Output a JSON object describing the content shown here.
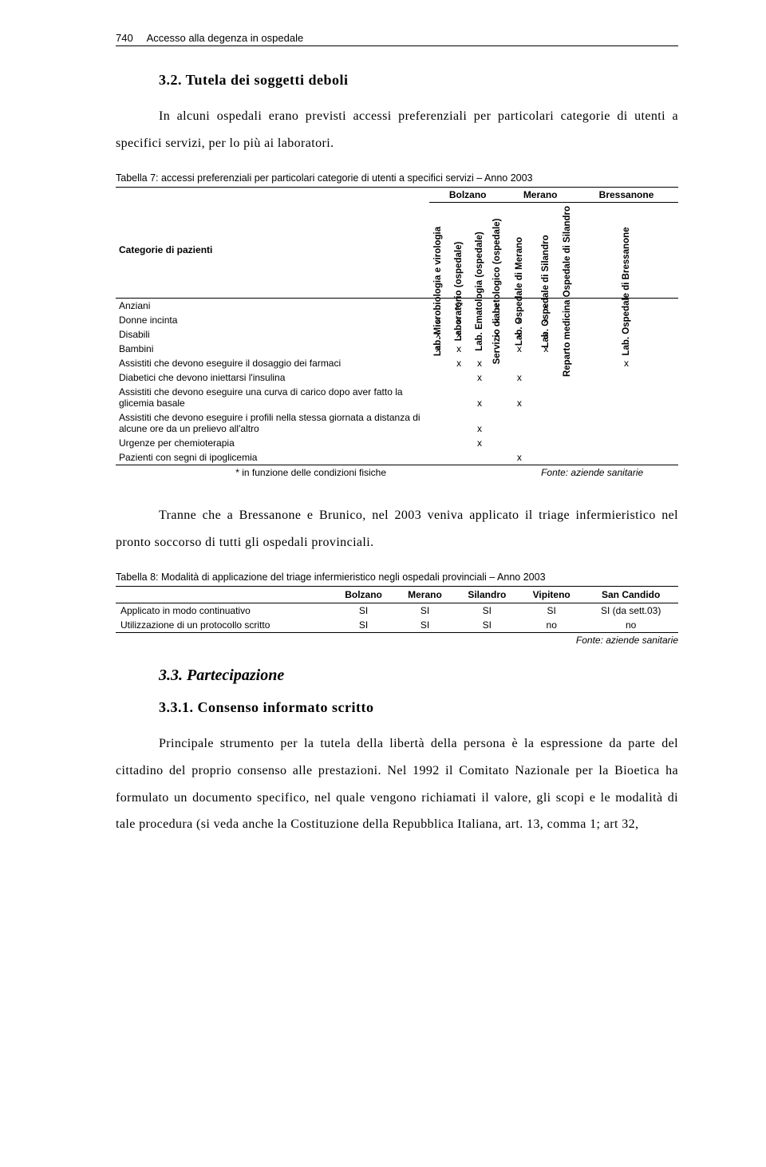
{
  "header": {
    "page_num": "740",
    "title": "Accesso alla degenza in ospedale"
  },
  "sec32": {
    "title": "3.2. Tutela dei soggetti deboli",
    "para": "In alcuni ospedali erano previsti accessi preferenziali per particolari categorie di utenti a specifici servizi, per lo più ai laboratori."
  },
  "table7": {
    "caption": "Tabella 7: accessi preferenziali per particolari categorie di utenti a specifici servizi – Anno 2003",
    "group_headers": [
      "Bolzano",
      "Merano",
      "Bressanone"
    ],
    "cat_header": "Categorie di pazienti",
    "col_headers": [
      "Lab. Microbiologia e virologia",
      "Laboratorio (ospedale)",
      "Lab. Ematologia (ospedale)",
      "Servizio diabetologico (ospedale)",
      "Lab. Ospedale di Merano",
      "Lab. Ospedale di Silandro",
      "Reparto medicina Ospedale di Silandro",
      "Lab. Ospedale di Bressanone"
    ],
    "rows": [
      {
        "cat": "Anziani",
        "cells": [
          "",
          "x*",
          "",
          "x",
          "",
          "x",
          "",
          ""
        ]
      },
      {
        "cat": "Donne incinta",
        "cells": [
          "x",
          "x",
          "",
          "x",
          "x",
          "x",
          "",
          ""
        ]
      },
      {
        "cat": "Disabili",
        "cells": [
          "x",
          "x",
          "",
          "x",
          "x",
          "x",
          "",
          ""
        ]
      },
      {
        "cat": "Bambini",
        "cells": [
          "x",
          "x",
          "",
          "",
          "x",
          "x",
          "",
          ""
        ]
      },
      {
        "cat": "Assistiti che devono eseguire il dosaggio dei farmaci",
        "cells": [
          "",
          "x",
          "x",
          "",
          "",
          "",
          "",
          "x"
        ]
      },
      {
        "cat": "Diabetici che devono iniettarsi l'insulina",
        "cells": [
          "",
          "",
          "x",
          "",
          "x",
          "",
          "",
          ""
        ]
      },
      {
        "cat": "Assistiti che devono eseguire una curva di carico dopo aver fatto la glicemia basale",
        "cells": [
          "",
          "",
          "x",
          "",
          "x",
          "",
          "",
          ""
        ]
      },
      {
        "cat": "Assistiti che devono eseguire i profili nella stessa giornata a distanza di alcune ore da un prelievo all'altro",
        "cells": [
          "",
          "",
          "x",
          "",
          "",
          "",
          "",
          ""
        ]
      },
      {
        "cat": "Urgenze per chemioterapia",
        "cells": [
          "",
          "",
          "x",
          "",
          "",
          "",
          "",
          ""
        ]
      },
      {
        "cat": "Pazienti con segni di ipoglicemia",
        "cells": [
          "",
          "",
          "",
          "",
          "x",
          "",
          "",
          ""
        ]
      }
    ],
    "footnote": "* in funzione delle condizioni fisiche",
    "fonte": "Fonte: aziende sanitarie"
  },
  "para_mid": "Tranne che a Bressanone e Brunico, nel 2003 veniva applicato il triage infermieristico nel pronto soccorso di tutti gli ospedali provinciali.",
  "table8": {
    "caption": "Tabella 8: Modalità di applicazione del triage infermieristico negli ospedali provinciali – Anno 2003",
    "headers": [
      "",
      "Bolzano",
      "Merano",
      "Silandro",
      "Vipiteno",
      "San Candido"
    ],
    "rows": [
      {
        "label": "Applicato in modo continuativo",
        "cells": [
          "SI",
          "SI",
          "SI",
          "SI",
          "SI (da sett.03)"
        ]
      },
      {
        "label": "Utilizzazione di un protocollo scritto",
        "cells": [
          "SI",
          "SI",
          "SI",
          "no",
          "no"
        ]
      }
    ],
    "fonte": "Fonte: aziende sanitarie"
  },
  "sec33": {
    "title": "3.3. Partecipazione"
  },
  "sec331": {
    "title": "3.3.1. Consenso informato scritto",
    "para": "Principale strumento per la tutela della libertà della persona è la espressione da parte del cittadino del proprio consenso alle prestazioni. Nel 1992 il Comitato Nazionale per la Bioetica ha formulato un documento specifico, nel quale vengono richiamati il valore, gli scopi e le modalità di tale procedura (si veda anche la Costituzione della Repubblica Italiana, art. 13, comma 1; art 32,"
  }
}
